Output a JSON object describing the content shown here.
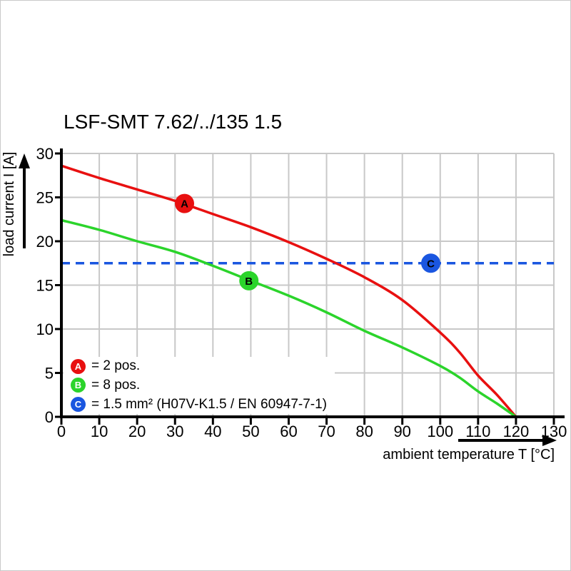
{
  "chart_data": {
    "type": "line",
    "title": "LSF-SMT 7.62/../135 1.5",
    "xlabel": "ambient temperature T [°C]",
    "ylabel": "load current I [A]",
    "xlim": [
      0,
      130
    ],
    "ylim": [
      0,
      30
    ],
    "xticks": [
      0,
      10,
      20,
      30,
      40,
      50,
      60,
      70,
      80,
      90,
      100,
      110,
      120,
      130
    ],
    "yticks": [
      0,
      5,
      10,
      15,
      20,
      25,
      30
    ],
    "grid": true,
    "grid_color": "#c8c8c8",
    "axis_color": "#000000",
    "legend_position": "lower-left-inside",
    "series": [
      {
        "id": "A",
        "legend_label": "= 2 pos.",
        "color": "#e81010",
        "line_style": "solid",
        "marker": {
          "letter": "A",
          "x": 32.5,
          "y": 24.3
        },
        "points": [
          [
            0,
            28.6
          ],
          [
            10,
            27.2
          ],
          [
            20,
            25.9
          ],
          [
            30,
            24.6
          ],
          [
            40,
            23.1
          ],
          [
            50,
            21.6
          ],
          [
            60,
            19.9
          ],
          [
            70,
            18.0
          ],
          [
            80,
            15.9
          ],
          [
            90,
            13.3
          ],
          [
            100,
            9.6
          ],
          [
            105,
            7.4
          ],
          [
            110,
            4.7
          ],
          [
            115,
            2.5
          ],
          [
            120,
            0
          ]
        ]
      },
      {
        "id": "B",
        "legend_label": "= 8 pos.",
        "color": "#2bd42b",
        "line_style": "solid",
        "marker": {
          "letter": "B",
          "x": 49.5,
          "y": 15.5
        },
        "points": [
          [
            0,
            22.4
          ],
          [
            10,
            21.3
          ],
          [
            20,
            20.0
          ],
          [
            30,
            18.8
          ],
          [
            40,
            17.2
          ],
          [
            50,
            15.5
          ],
          [
            60,
            13.8
          ],
          [
            70,
            11.9
          ],
          [
            80,
            9.8
          ],
          [
            90,
            7.9
          ],
          [
            100,
            5.8
          ],
          [
            105,
            4.5
          ],
          [
            110,
            2.9
          ],
          [
            115,
            1.5
          ],
          [
            120,
            0
          ]
        ]
      },
      {
        "id": "C",
        "legend_label": "= 1.5 mm² (H07V-K1.5 / EN 60947-7-1)",
        "color": "#1a56e0",
        "line_style": "dashed",
        "marker": {
          "letter": "C",
          "x": 97.5,
          "y": 17.5
        },
        "points": [
          [
            0,
            17.5
          ],
          [
            130,
            17.5
          ]
        ]
      }
    ]
  }
}
